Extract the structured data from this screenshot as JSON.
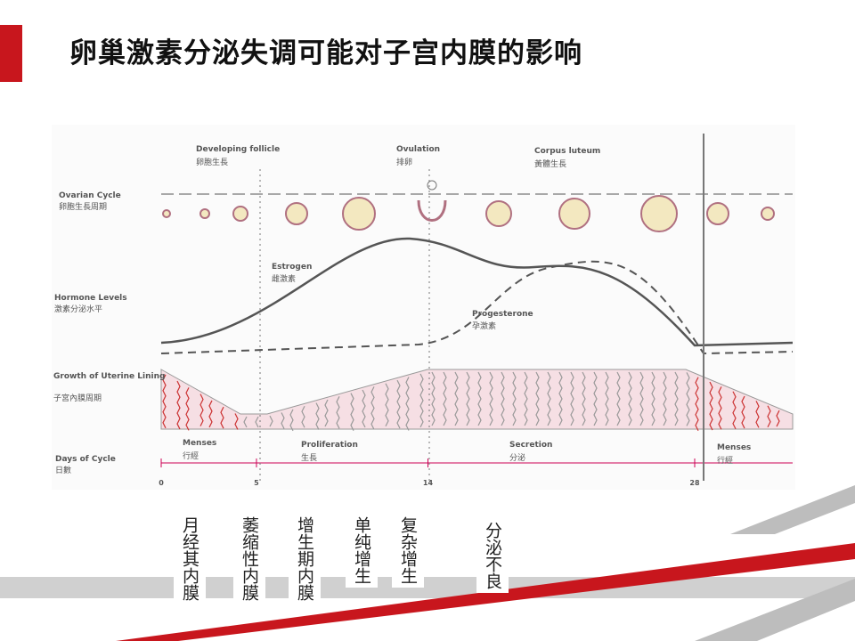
{
  "header": {
    "title": "卵巢激素分泌失调可能对子宫内膜的影响"
  },
  "diagram": {
    "phases": [
      {
        "en": "Developing follicle",
        "zh": "卵胞生長"
      },
      {
        "en": "Ovulation",
        "zh": "排卵"
      },
      {
        "en": "Corpus luteum",
        "zh": "黃體生長"
      }
    ],
    "rows": [
      {
        "en": "Ovarian Cycle",
        "zh": "卵胞生長周期"
      },
      {
        "en": "Hormone Levels",
        "zh": "激素分泌水平"
      },
      {
        "en": "Growth of Uterine Lining",
        "zh": "子宮內膜周期"
      },
      {
        "en": "Days of Cycle",
        "zh": "日數"
      }
    ],
    "hormones": [
      {
        "en": "Estrogen",
        "zh": "雌激素"
      },
      {
        "en": "Progesterone",
        "zh": "孕激素"
      }
    ],
    "stages": [
      {
        "en": "Menses",
        "zh": "行經"
      },
      {
        "en": "Proliferation",
        "zh": "生長"
      },
      {
        "en": "Secretion",
        "zh": "分泌"
      },
      {
        "en": "Menses",
        "zh": "行經"
      }
    ],
    "days": [
      0,
      5,
      14,
      28
    ]
  },
  "labels": [
    "月经其内膜",
    "萎缩性内膜",
    "增生期内膜",
    "单纯增生",
    "复杂增生",
    "分泌不良"
  ]
}
